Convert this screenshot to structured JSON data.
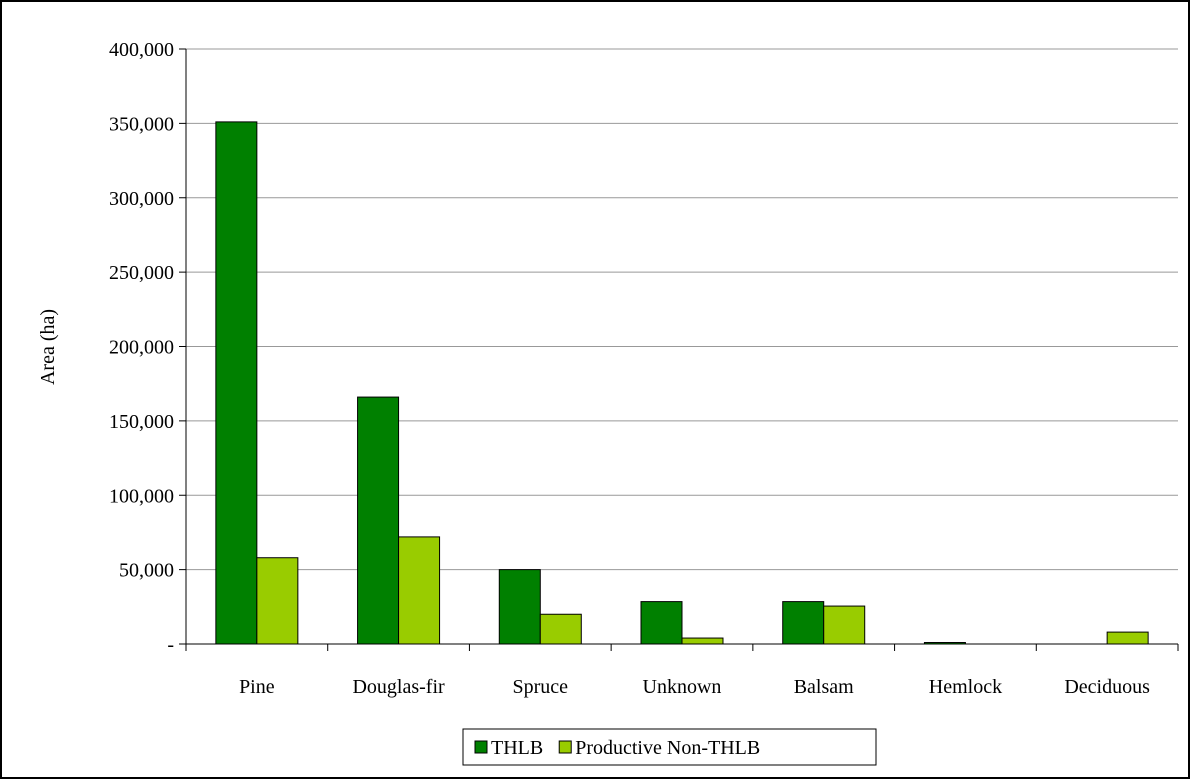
{
  "chart_data": {
    "type": "bar",
    "title": "",
    "xlabel": "",
    "ylabel": "Area (ha)",
    "ylim": [
      0,
      400000
    ],
    "yticks": [
      0,
      50000,
      100000,
      150000,
      200000,
      250000,
      300000,
      350000,
      400000
    ],
    "ytick_labels": [
      "-",
      "50,000",
      "100,000",
      "150,000",
      "200,000",
      "250,000",
      "300,000",
      "350,000",
      "400,000"
    ],
    "categories": [
      "Pine",
      "Douglas-fir",
      "Spruce",
      "Unknown",
      "Balsam",
      "Hemlock",
      "Deciduous"
    ],
    "series": [
      {
        "name": "THLB",
        "color": "#008000",
        "values": [
          351000,
          166000,
          50000,
          28500,
          28500,
          1000,
          0
        ]
      },
      {
        "name": "Productive Non-THLB",
        "color": "#99CC00",
        "values": [
          58000,
          72000,
          20000,
          4000,
          25500,
          0,
          8000
        ]
      }
    ],
    "grid": true,
    "legend_position": "bottom"
  }
}
